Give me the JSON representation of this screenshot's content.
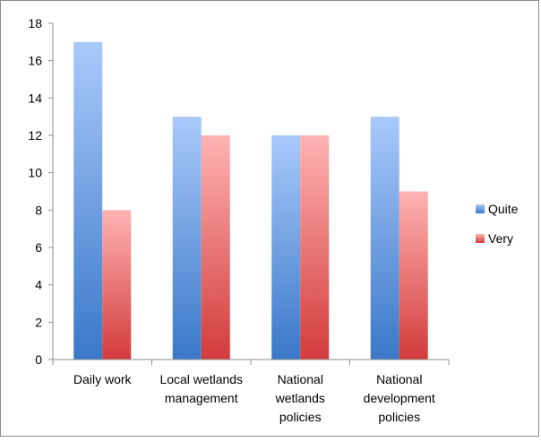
{
  "chart_data": {
    "type": "bar",
    "title": "",
    "xlabel": "",
    "ylabel": "",
    "ylim": [
      0,
      18
    ],
    "yticks": [
      0,
      2,
      4,
      6,
      8,
      10,
      12,
      14,
      16,
      18
    ],
    "grid": false,
    "legend_position": "right",
    "categories": [
      [
        "Daily work"
      ],
      [
        "Local wetlands",
        "management"
      ],
      [
        "National",
        "wetlands",
        "policies"
      ],
      [
        "National",
        "development",
        "policies"
      ]
    ],
    "series": [
      {
        "name": "Quite",
        "values": [
          17,
          13,
          12,
          13
        ],
        "color_top": "#a9c9fb",
        "color_bottom": "#3a78c8"
      },
      {
        "name": "Very",
        "values": [
          8,
          12,
          12,
          9
        ],
        "color_top": "#ffb3b3",
        "color_bottom": "#d23b3b"
      }
    ]
  }
}
